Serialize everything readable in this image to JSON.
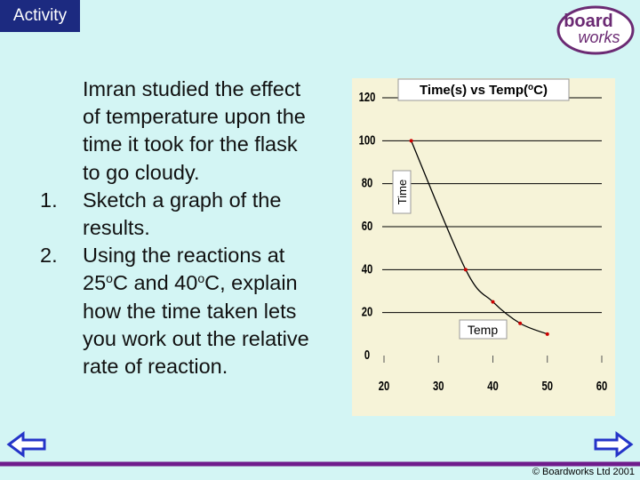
{
  "header": {
    "title": "Activity",
    "logo_top": "board",
    "logo_bottom": "works"
  },
  "intro": {
    "lines": [
      "Imran studied the effect",
      "of temperature upon the",
      "time it took for the flask",
      "to go cloudy."
    ]
  },
  "items": [
    {
      "number": "1.",
      "lines": [
        "Sketch a graph of the",
        "results."
      ]
    },
    {
      "number": "2.",
      "lines": [
        "Using the reactions at",
        [
          "25",
          "o",
          "C and 40",
          "o",
          "C, explain"
        ],
        "how the time taken lets",
        "you work out the relative",
        "rate of reaction."
      ]
    }
  ],
  "chart_data": {
    "type": "line",
    "title": [
      "Time(s) vs Temp(",
      "o",
      "C)"
    ],
    "y_label": "Time",
    "x_label": "Temp",
    "x": [
      25,
      35,
      40,
      45,
      50
    ],
    "values": [
      100,
      40,
      25,
      15,
      10
    ],
    "color": "#000000",
    "marker_color": "#cc0000",
    "xlim": [
      20,
      60
    ],
    "xticks": [
      20,
      30,
      40,
      50,
      60
    ],
    "ylim": [
      0,
      120
    ],
    "yticks": [
      0,
      20,
      40,
      60,
      80,
      100,
      120
    ],
    "grid": true
  },
  "footer": {
    "copyright": "© Boardworks Ltd 2001"
  }
}
